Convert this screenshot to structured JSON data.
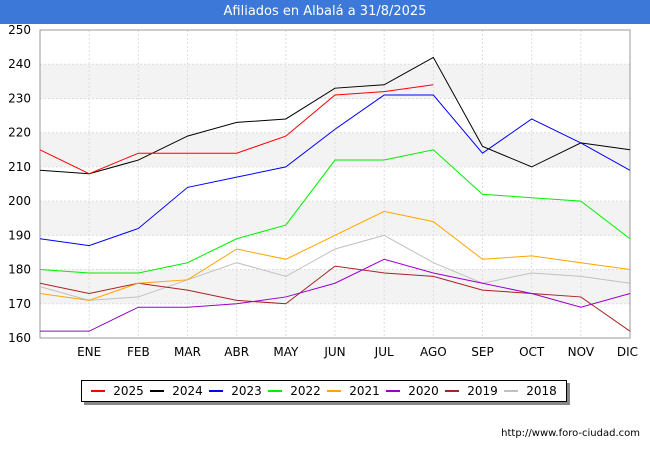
{
  "header": {
    "title": "Afiliados en Albalá a 31/8/2025"
  },
  "footer": {
    "url": "http://www.foro-ciudad.com"
  },
  "chart_data": {
    "type": "line",
    "title": "Afiliados en Albalá a 31/8/2025",
    "xlabel": "",
    "ylabel": "",
    "categories": [
      "",
      "ENE",
      "FEB",
      "MAR",
      "ABR",
      "MAY",
      "JUN",
      "JUL",
      "AGO",
      "SEP",
      "OCT",
      "NOV",
      "DIC"
    ],
    "y_ticks": [
      160,
      170,
      180,
      190,
      200,
      210,
      220,
      230,
      240,
      250
    ],
    "ylim": [
      160,
      250
    ],
    "grid": true,
    "legend_position": "bottom",
    "series": [
      {
        "name": "2025",
        "color": "#ff0000",
        "values": [
          215,
          208,
          214,
          214,
          214,
          219,
          231,
          232,
          234,
          null,
          null,
          null,
          null
        ]
      },
      {
        "name": "2024",
        "color": "#000000",
        "values": [
          209,
          208,
          212,
          219,
          223,
          224,
          233,
          234,
          242,
          216,
          210,
          217,
          215
        ]
      },
      {
        "name": "2023",
        "color": "#0000ff",
        "values": [
          189,
          187,
          192,
          204,
          207,
          210,
          221,
          231,
          231,
          214,
          224,
          217,
          209
        ]
      },
      {
        "name": "2022",
        "color": "#00ee00",
        "values": [
          180,
          179,
          179,
          182,
          189,
          193,
          212,
          212,
          215,
          202,
          201,
          200,
          189
        ]
      },
      {
        "name": "2021",
        "color": "#ffa500",
        "values": [
          173,
          171,
          176,
          177,
          186,
          183,
          190,
          197,
          194,
          183,
          184,
          182,
          180
        ]
      },
      {
        "name": "2020",
        "color": "#9900cc",
        "values": [
          162,
          162,
          169,
          169,
          170,
          172,
          176,
          183,
          179,
          176,
          173,
          169,
          173
        ]
      },
      {
        "name": "2019",
        "color": "#aa2222",
        "values": [
          176,
          173,
          176,
          174,
          171,
          170,
          181,
          179,
          178,
          174,
          173,
          172,
          162
        ]
      },
      {
        "name": "2018",
        "color": "#c0c0c0",
        "values": [
          175,
          171,
          172,
          177,
          182,
          178,
          186,
          190,
          182,
          176,
          179,
          178,
          176
        ]
      }
    ]
  }
}
